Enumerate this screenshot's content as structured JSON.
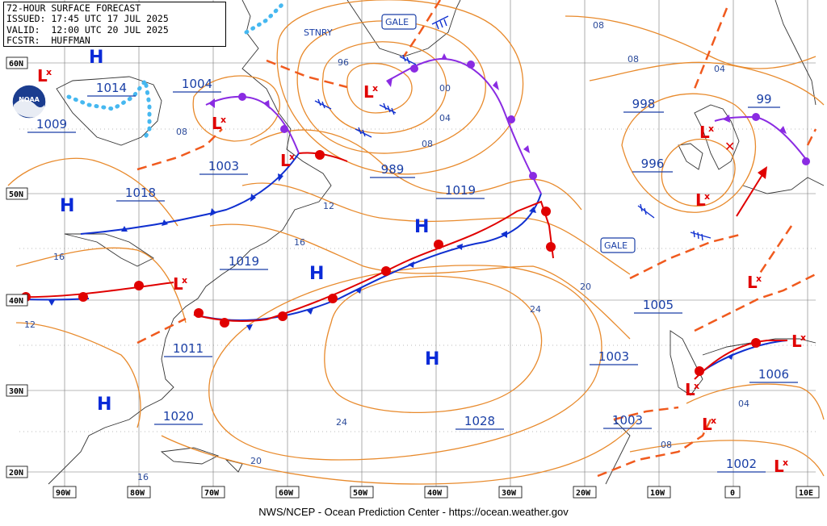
{
  "header": {
    "title": "72-HOUR SURFACE FORECAST",
    "issued": "ISSUED: 17:45 UTC 17 JUL 2025",
    "valid": "VALID:  12:00 UTC 20 JUL 2025",
    "forecaster": "FCSTR:  HUFFMAN"
  },
  "footer": {
    "credit": "NWS/NCEP - Ocean Prediction Center - https://ocean.weather.gov"
  },
  "logo": {
    "text": "NOAA"
  },
  "lon_labels": [
    "90W",
    "80W",
    "70W",
    "60W",
    "50W",
    "40W",
    "30W",
    "20W",
    "10W",
    "0",
    "10E"
  ],
  "lat_labels": [
    "60N",
    "50N",
    "40N",
    "30N",
    "20N"
  ],
  "highs": [
    {
      "id": "h-labrador",
      "label": "H",
      "pressure": ""
    },
    {
      "id": "h-greatlakes",
      "label": "H",
      "pressure": "1018"
    },
    {
      "id": "h-atlantic-w",
      "label": "H",
      "pressure": "1019"
    },
    {
      "id": "h-atlantic-c",
      "label": "H",
      "pressure": "1019"
    },
    {
      "id": "h-azores",
      "label": "H",
      "pressure": "1028"
    },
    {
      "id": "h-bermuda",
      "label": "H",
      "pressure": "1020"
    }
  ],
  "lows": [
    {
      "id": "l-hudson",
      "pressure": "1009"
    },
    {
      "id": "l-labrador",
      "pressure": "1004"
    },
    {
      "id": "l-newfoundland",
      "pressure": "1003"
    },
    {
      "id": "l-greenland",
      "pressure": "989"
    },
    {
      "id": "l-scotland",
      "pressure": "998"
    },
    {
      "id": "l-ireland",
      "pressure": "996"
    },
    {
      "id": "l-north-sea",
      "pressure": "99"
    },
    {
      "id": "l-capecod",
      "pressure": "1011"
    },
    {
      "id": "l-iberia",
      "pressure": "1005"
    },
    {
      "id": "l-med",
      "pressure": "1006"
    },
    {
      "id": "l-canary",
      "pressure": "1003"
    },
    {
      "id": "l-sahara",
      "pressure": "1002"
    },
    {
      "id": "l-sw",
      "pressure": "1003"
    }
  ],
  "boxed_pressures": [
    {
      "id": "p-1014",
      "value": "1014"
    },
    {
      "id": "p-1004",
      "value": "1004"
    },
    {
      "id": "p-1009",
      "value": "1009"
    },
    {
      "id": "p-1003a",
      "value": "1003"
    },
    {
      "id": "p-1018",
      "value": "1018"
    },
    {
      "id": "p-989",
      "value": "989"
    },
    {
      "id": "p-1019a",
      "value": "1019"
    },
    {
      "id": "p-1019b",
      "value": "1019"
    },
    {
      "id": "p-998",
      "value": "998"
    },
    {
      "id": "p-996",
      "value": "996"
    },
    {
      "id": "p-99",
      "value": "99"
    },
    {
      "id": "p-1011",
      "value": "1011"
    },
    {
      "id": "p-1005",
      "value": "1005"
    },
    {
      "id": "p-1003b",
      "value": "1003"
    },
    {
      "id": "p-1006",
      "value": "1006"
    },
    {
      "id": "p-1028",
      "value": "1028"
    },
    {
      "id": "p-1020",
      "value": "1020"
    },
    {
      "id": "p-1003c",
      "value": "1003"
    },
    {
      "id": "p-1002",
      "value": "1002"
    }
  ],
  "isobar_labels": [
    "96",
    "00",
    "04",
    "08",
    "08",
    "12",
    "16",
    "16",
    "12",
    "20",
    "24",
    "24",
    "20",
    "16",
    "08",
    "08",
    "04",
    "04",
    "08",
    "08"
  ],
  "warnings": [
    {
      "id": "gale-n",
      "text": "GALE"
    },
    {
      "id": "gale-e",
      "text": "GALE"
    }
  ],
  "stationary_label": "STNRY",
  "colors": {
    "isobar": "#e88a2c",
    "warm_front": "#e00000",
    "cold_front": "#1030d0",
    "occluded_front": "#8a2be2",
    "trough": "#f05a1e",
    "high": "#0a2ad8",
    "low": "#e00000",
    "ice_edge": "#46b8f0",
    "grid": "#555555",
    "coast": "#333333"
  }
}
